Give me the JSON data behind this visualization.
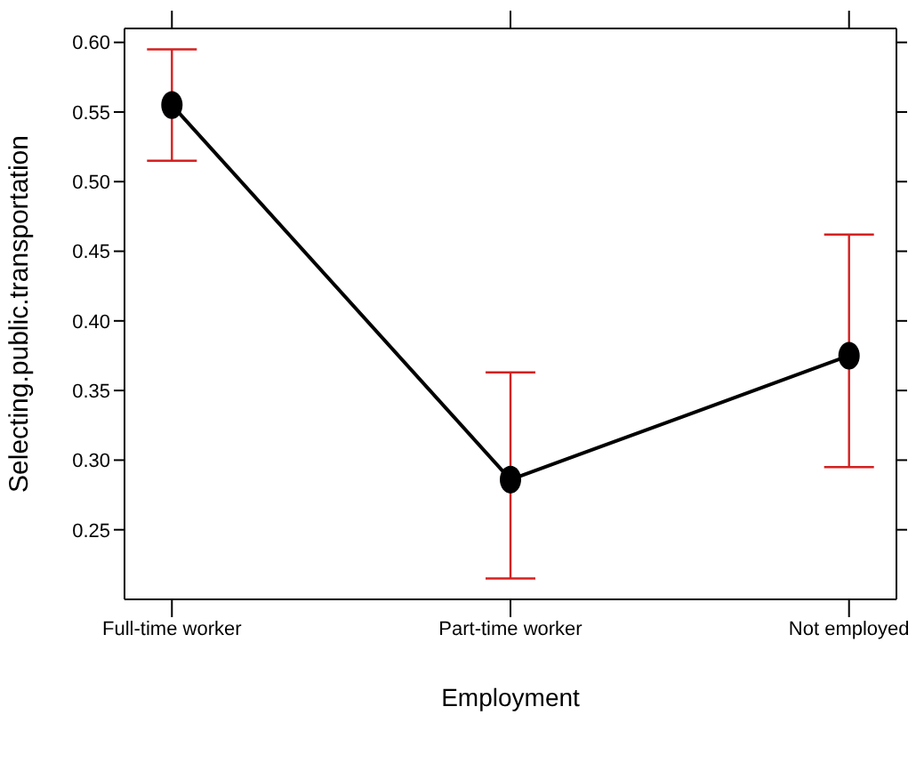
{
  "chart_data": {
    "type": "line",
    "xlabel": "Employment",
    "ylabel": "Selecting.public.transportation",
    "categories": [
      "Full-time worker",
      "Part-time worker",
      "Not employed"
    ],
    "values": [
      0.555,
      0.286,
      0.375
    ],
    "errors": [
      [
        0.515,
        0.595
      ],
      [
        0.215,
        0.363
      ],
      [
        0.295,
        0.462
      ]
    ],
    "color": "#000000",
    "marker": "circle",
    "line_style": "solid",
    "ylim": [
      0.2,
      0.61
    ],
    "yticks": [
      0.25,
      {
        "value": 0.3,
        "label": "0.30"
      },
      0.35,
      {
        "value": 0.4,
        "label": "0.40"
      },
      0.45,
      {
        "value": 0.5,
        "label": "0.50"
      },
      0.55,
      {
        "value": 0.6,
        "label": "0.60"
      }
    ]
  }
}
